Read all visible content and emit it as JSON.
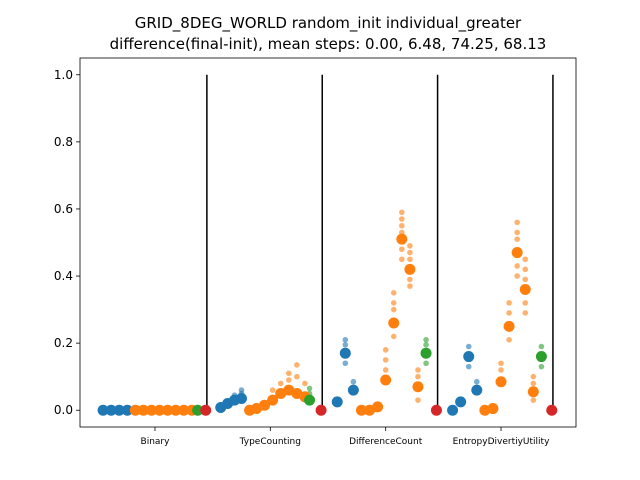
{
  "chart_data": {
    "type": "scatter",
    "title_lines": [
      "GRID_8DEG_WORLD random_init individual_greater",
      "difference(final-init), mean steps: 0.00, 6.48, 74.25, 68.13"
    ],
    "xlabel": "",
    "ylabel": "",
    "ylim": [
      -0.05,
      1.05
    ],
    "y_ticks": [
      0.0,
      0.2,
      0.4,
      0.6,
      0.8,
      1.0
    ],
    "y_tick_labels": [
      "0.0",
      "0.2",
      "0.4",
      "0.6",
      "0.8",
      "1.0"
    ],
    "categories": [
      "Binary",
      "TypeCounting",
      "DifferenceCount",
      "EntropyDivertiyUtility"
    ],
    "colors": {
      "blue": "#1f77b4",
      "orange": "#ff7f0e",
      "green": "#2ca02c",
      "red": "#d62728"
    },
    "separators_x": [
      0.9,
      1.9,
      2.9,
      3.9
    ],
    "separator_ymax": 1.0,
    "points": [
      {
        "x": 0.0,
        "y": 0.0,
        "c": "blue",
        "big": true
      },
      {
        "x": 0.07,
        "y": 0.0,
        "c": "blue",
        "big": true
      },
      {
        "x": 0.14,
        "y": 0.0,
        "c": "blue",
        "big": true
      },
      {
        "x": 0.21,
        "y": 0.0,
        "c": "blue",
        "big": true
      },
      {
        "x": 0.28,
        "y": 0.0,
        "c": "orange",
        "big": true
      },
      {
        "x": 0.35,
        "y": 0.0,
        "c": "orange",
        "big": true
      },
      {
        "x": 0.42,
        "y": 0.0,
        "c": "orange",
        "big": true
      },
      {
        "x": 0.49,
        "y": 0.0,
        "c": "orange",
        "big": true
      },
      {
        "x": 0.56,
        "y": 0.0,
        "c": "orange",
        "big": true
      },
      {
        "x": 0.63,
        "y": 0.0,
        "c": "orange",
        "big": true
      },
      {
        "x": 0.7,
        "y": 0.0,
        "c": "orange",
        "big": true
      },
      {
        "x": 0.77,
        "y": 0.0,
        "c": "orange",
        "big": true
      },
      {
        "x": 0.82,
        "y": 0.0,
        "c": "green",
        "big": true
      },
      {
        "x": 0.89,
        "y": 0.0,
        "c": "red",
        "big": true
      },
      {
        "x": 1.02,
        "y": 0.008,
        "c": "blue",
        "big": true
      },
      {
        "x": 1.08,
        "y": 0.02,
        "c": "blue",
        "big": true
      },
      {
        "x": 1.14,
        "y": 0.03,
        "c": "blue",
        "big": true
      },
      {
        "x": 1.2,
        "y": 0.035,
        "c": "blue",
        "big": true
      },
      {
        "x": 1.27,
        "y": 0.0,
        "c": "orange",
        "big": true
      },
      {
        "x": 1.33,
        "y": 0.005,
        "c": "orange",
        "big": true
      },
      {
        "x": 1.4,
        "y": 0.015,
        "c": "orange",
        "big": true
      },
      {
        "x": 1.47,
        "y": 0.03,
        "c": "orange",
        "big": true
      },
      {
        "x": 1.54,
        "y": 0.05,
        "c": "orange",
        "big": true
      },
      {
        "x": 1.61,
        "y": 0.06,
        "c": "orange",
        "big": true
      },
      {
        "x": 1.68,
        "y": 0.05,
        "c": "orange",
        "big": true
      },
      {
        "x": 1.75,
        "y": 0.04,
        "c": "orange",
        "big": true
      },
      {
        "x": 1.79,
        "y": 0.03,
        "c": "green",
        "big": true
      },
      {
        "x": 1.89,
        "y": 0.0,
        "c": "red",
        "big": true
      },
      {
        "x": 2.03,
        "y": 0.025,
        "c": "blue",
        "big": true
      },
      {
        "x": 2.1,
        "y": 0.17,
        "c": "blue",
        "big": true
      },
      {
        "x": 2.17,
        "y": 0.06,
        "c": "blue",
        "big": true
      },
      {
        "x": 2.24,
        "y": 0.0,
        "c": "orange",
        "big": true
      },
      {
        "x": 2.31,
        "y": 0.0,
        "c": "orange",
        "big": true
      },
      {
        "x": 2.38,
        "y": 0.01,
        "c": "orange",
        "big": true
      },
      {
        "x": 2.45,
        "y": 0.09,
        "c": "orange",
        "big": true
      },
      {
        "x": 2.52,
        "y": 0.26,
        "c": "orange",
        "big": true
      },
      {
        "x": 2.59,
        "y": 0.51,
        "c": "orange",
        "big": true
      },
      {
        "x": 2.66,
        "y": 0.42,
        "c": "orange",
        "big": true
      },
      {
        "x": 2.73,
        "y": 0.07,
        "c": "orange",
        "big": true
      },
      {
        "x": 2.8,
        "y": 0.17,
        "c": "green",
        "big": true
      },
      {
        "x": 2.89,
        "y": 0.0,
        "c": "red",
        "big": true
      },
      {
        "x": 3.03,
        "y": 0.0,
        "c": "blue",
        "big": true
      },
      {
        "x": 3.1,
        "y": 0.025,
        "c": "blue",
        "big": true
      },
      {
        "x": 3.17,
        "y": 0.16,
        "c": "blue",
        "big": true
      },
      {
        "x": 3.24,
        "y": 0.06,
        "c": "blue",
        "big": true
      },
      {
        "x": 3.31,
        "y": 0.0,
        "c": "orange",
        "big": true
      },
      {
        "x": 3.38,
        "y": 0.005,
        "c": "orange",
        "big": true
      },
      {
        "x": 3.45,
        "y": 0.085,
        "c": "orange",
        "big": true
      },
      {
        "x": 3.52,
        "y": 0.25,
        "c": "orange",
        "big": true
      },
      {
        "x": 3.59,
        "y": 0.47,
        "c": "orange",
        "big": true
      },
      {
        "x": 3.66,
        "y": 0.36,
        "c": "orange",
        "big": true
      },
      {
        "x": 3.73,
        "y": 0.055,
        "c": "orange",
        "big": true
      },
      {
        "x": 3.8,
        "y": 0.16,
        "c": "green",
        "big": true
      },
      {
        "x": 3.89,
        "y": 0.0,
        "c": "red",
        "big": true
      },
      {
        "x": 1.2,
        "y": 0.06,
        "c": "blue",
        "big": false
      },
      {
        "x": 1.2,
        "y": 0.05,
        "c": "blue",
        "big": false
      },
      {
        "x": 1.14,
        "y": 0.045,
        "c": "blue",
        "big": false
      },
      {
        "x": 1.54,
        "y": 0.08,
        "c": "orange",
        "big": false
      },
      {
        "x": 1.61,
        "y": 0.09,
        "c": "orange",
        "big": false
      },
      {
        "x": 1.61,
        "y": 0.11,
        "c": "orange",
        "big": false
      },
      {
        "x": 1.68,
        "y": 0.135,
        "c": "orange",
        "big": false
      },
      {
        "x": 1.68,
        "y": 0.1,
        "c": "orange",
        "big": false
      },
      {
        "x": 1.75,
        "y": 0.08,
        "c": "orange",
        "big": false
      },
      {
        "x": 1.47,
        "y": 0.06,
        "c": "orange",
        "big": false
      },
      {
        "x": 1.79,
        "y": 0.065,
        "c": "green",
        "big": false
      },
      {
        "x": 1.79,
        "y": 0.05,
        "c": "green",
        "big": false
      },
      {
        "x": 2.1,
        "y": 0.21,
        "c": "blue",
        "big": false
      },
      {
        "x": 2.1,
        "y": 0.195,
        "c": "blue",
        "big": false
      },
      {
        "x": 2.1,
        "y": 0.14,
        "c": "blue",
        "big": false
      },
      {
        "x": 2.17,
        "y": 0.085,
        "c": "blue",
        "big": false
      },
      {
        "x": 2.45,
        "y": 0.18,
        "c": "orange",
        "big": false
      },
      {
        "x": 2.45,
        "y": 0.15,
        "c": "orange",
        "big": false
      },
      {
        "x": 2.45,
        "y": 0.12,
        "c": "orange",
        "big": false
      },
      {
        "x": 2.52,
        "y": 0.35,
        "c": "orange",
        "big": false
      },
      {
        "x": 2.52,
        "y": 0.32,
        "c": "orange",
        "big": false
      },
      {
        "x": 2.52,
        "y": 0.3,
        "c": "orange",
        "big": false
      },
      {
        "x": 2.52,
        "y": 0.22,
        "c": "orange",
        "big": false
      },
      {
        "x": 2.59,
        "y": 0.59,
        "c": "orange",
        "big": false
      },
      {
        "x": 2.59,
        "y": 0.57,
        "c": "orange",
        "big": false
      },
      {
        "x": 2.59,
        "y": 0.55,
        "c": "orange",
        "big": false
      },
      {
        "x": 2.59,
        "y": 0.53,
        "c": "orange",
        "big": false
      },
      {
        "x": 2.59,
        "y": 0.48,
        "c": "orange",
        "big": false
      },
      {
        "x": 2.59,
        "y": 0.45,
        "c": "orange",
        "big": false
      },
      {
        "x": 2.66,
        "y": 0.49,
        "c": "orange",
        "big": false
      },
      {
        "x": 2.66,
        "y": 0.47,
        "c": "orange",
        "big": false
      },
      {
        "x": 2.66,
        "y": 0.45,
        "c": "orange",
        "big": false
      },
      {
        "x": 2.66,
        "y": 0.39,
        "c": "orange",
        "big": false
      },
      {
        "x": 2.66,
        "y": 0.37,
        "c": "orange",
        "big": false
      },
      {
        "x": 2.73,
        "y": 0.12,
        "c": "orange",
        "big": false
      },
      {
        "x": 2.73,
        "y": 0.1,
        "c": "orange",
        "big": false
      },
      {
        "x": 2.73,
        "y": 0.03,
        "c": "orange",
        "big": false
      },
      {
        "x": 2.8,
        "y": 0.21,
        "c": "green",
        "big": false
      },
      {
        "x": 2.8,
        "y": 0.195,
        "c": "green",
        "big": false
      },
      {
        "x": 2.8,
        "y": 0.14,
        "c": "green",
        "big": false
      },
      {
        "x": 3.17,
        "y": 0.19,
        "c": "blue",
        "big": false
      },
      {
        "x": 3.17,
        "y": 0.13,
        "c": "blue",
        "big": false
      },
      {
        "x": 3.24,
        "y": 0.085,
        "c": "blue",
        "big": false
      },
      {
        "x": 3.45,
        "y": 0.14,
        "c": "orange",
        "big": false
      },
      {
        "x": 3.45,
        "y": 0.12,
        "c": "orange",
        "big": false
      },
      {
        "x": 3.52,
        "y": 0.32,
        "c": "orange",
        "big": false
      },
      {
        "x": 3.52,
        "y": 0.29,
        "c": "orange",
        "big": false
      },
      {
        "x": 3.52,
        "y": 0.21,
        "c": "orange",
        "big": false
      },
      {
        "x": 3.59,
        "y": 0.56,
        "c": "orange",
        "big": false
      },
      {
        "x": 3.59,
        "y": 0.53,
        "c": "orange",
        "big": false
      },
      {
        "x": 3.59,
        "y": 0.51,
        "c": "orange",
        "big": false
      },
      {
        "x": 3.59,
        "y": 0.43,
        "c": "orange",
        "big": false
      },
      {
        "x": 3.59,
        "y": 0.4,
        "c": "orange",
        "big": false
      },
      {
        "x": 3.66,
        "y": 0.45,
        "c": "orange",
        "big": false
      },
      {
        "x": 3.66,
        "y": 0.42,
        "c": "orange",
        "big": false
      },
      {
        "x": 3.66,
        "y": 0.39,
        "c": "orange",
        "big": false
      },
      {
        "x": 3.66,
        "y": 0.32,
        "c": "orange",
        "big": false
      },
      {
        "x": 3.66,
        "y": 0.29,
        "c": "orange",
        "big": false
      },
      {
        "x": 3.73,
        "y": 0.1,
        "c": "orange",
        "big": false
      },
      {
        "x": 3.73,
        "y": 0.08,
        "c": "orange",
        "big": false
      },
      {
        "x": 3.73,
        "y": 0.03,
        "c": "orange",
        "big": false
      },
      {
        "x": 3.8,
        "y": 0.19,
        "c": "green",
        "big": false
      },
      {
        "x": 3.8,
        "y": 0.13,
        "c": "green",
        "big": false
      }
    ]
  }
}
